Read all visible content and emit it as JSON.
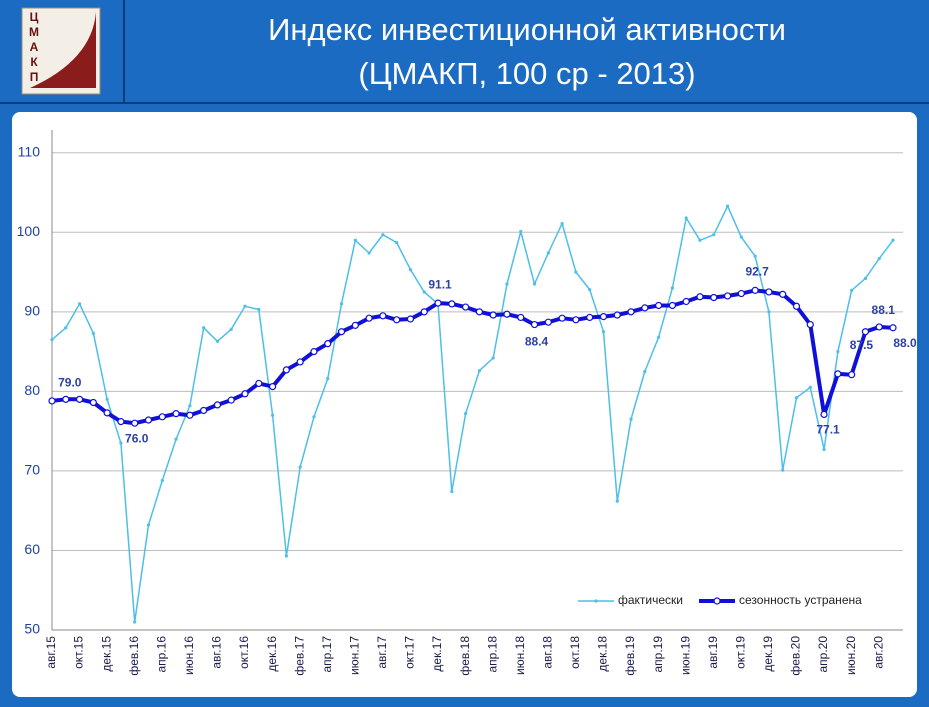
{
  "header": {
    "logo": [
      "Ц",
      "М",
      "А",
      "К",
      "П"
    ]
  },
  "chart_data": {
    "type": "line",
    "title": [
      "Индекс инвестиционной активности",
      "(ЦМАКП, 100 ср - 2013)"
    ],
    "categories": [
      "авг.15",
      null,
      "окт.15",
      null,
      "дек.15",
      null,
      "фев.16",
      null,
      "апр.16",
      null,
      "июн.16",
      null,
      "авг.16",
      null,
      "окт.16",
      null,
      "дек.16",
      null,
      "фев.17",
      null,
      "апр.17",
      null,
      "июн.17",
      null,
      "авг.17",
      null,
      "окт.17",
      null,
      "дек.17",
      null,
      "фев.18",
      null,
      "апр.18",
      null,
      "июн.18",
      null,
      "авг.18",
      null,
      "окт.18",
      null,
      "дек.18",
      null,
      "фев.19",
      null,
      "апр.19",
      null,
      "июн.19",
      null,
      "авг.19",
      null,
      "окт.19",
      null,
      "дек.19",
      null,
      "фев.20",
      null,
      "апр.20",
      null,
      "июн.20",
      null,
      "авг.20",
      null
    ],
    "series": [
      {
        "name": "фактически",
        "color": "#4dbfe8",
        "values": [
          86.5,
          88,
          91,
          87.3,
          79,
          73.5,
          51,
          63.2,
          68.8,
          74,
          78.2,
          88,
          86.3,
          87.8,
          90.7,
          90.3,
          77,
          59.3,
          70.5,
          76.8,
          81.6,
          91,
          99,
          97.4,
          99.7,
          98.7,
          95.3,
          92.5,
          91,
          67.4,
          77.2,
          82.6,
          84.2,
          93.5,
          100.1,
          93.5,
          97.4,
          101.1,
          95,
          92.8,
          87.5,
          66.2,
          76.5,
          82.5,
          86.8,
          93,
          101.8,
          99,
          99.7,
          103.3,
          99.4,
          97,
          90,
          70.1,
          79.2,
          80.5,
          72.7,
          85,
          92.7,
          94.2,
          96.7,
          99
        ]
      },
      {
        "name": "сезонность устранена",
        "color": "#1010d8",
        "values": [
          78.8,
          79.0,
          79.0,
          78.6,
          77.3,
          76.2,
          76.0,
          76.4,
          76.8,
          77.2,
          77.0,
          77.6,
          78.3,
          78.9,
          79.7,
          81.0,
          80.6,
          82.7,
          83.7,
          85.0,
          86.0,
          87.5,
          88.3,
          89.2,
          89.5,
          89.0,
          89.1,
          90.0,
          91.1,
          91.0,
          90.6,
          90.0,
          89.6,
          89.7,
          89.3,
          88.4,
          88.7,
          89.2,
          89.0,
          89.3,
          89.4,
          89.6,
          90.0,
          90.5,
          90.8,
          90.8,
          91.3,
          91.9,
          91.8,
          92.0,
          92.3,
          92.7,
          92.5,
          92.2,
          90.7,
          88.4,
          77.1,
          82.2,
          82.1,
          87.5,
          88.1,
          88.0
        ],
        "value_labels": [
          null,
          "79.0",
          null,
          null,
          null,
          null,
          "76.0",
          null,
          null,
          null,
          null,
          null,
          null,
          null,
          null,
          null,
          null,
          null,
          null,
          null,
          null,
          null,
          null,
          null,
          null,
          null,
          null,
          null,
          "91.1",
          null,
          null,
          null,
          null,
          null,
          null,
          "88.4",
          null,
          null,
          null,
          null,
          null,
          null,
          null,
          null,
          null,
          null,
          null,
          null,
          null,
          null,
          null,
          "92.7",
          null,
          null,
          null,
          null,
          "77.1",
          null,
          null,
          "87.5",
          "88.1",
          "88.0"
        ]
      }
    ],
    "ylim": [
      50,
      115
    ],
    "yticks": [
      50,
      60,
      70,
      80,
      90,
      100,
      110
    ],
    "grid": true,
    "legend": "lower right"
  }
}
